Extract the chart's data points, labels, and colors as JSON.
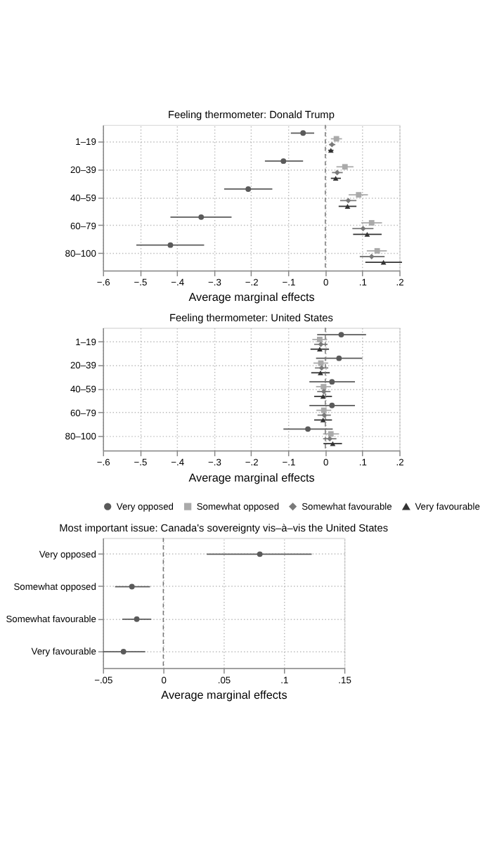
{
  "chart_data": [
    {
      "type": "scatter",
      "orientation": "horizontal",
      "title": "Feeling thermometer: Donald Trump",
      "xlabel": "Average marginal effects",
      "categories": [
        "1–19",
        "20–39",
        "40–59",
        "60–79",
        "80–100"
      ],
      "series": [
        {
          "color": "#5a5a5a",
          "marker": "circle",
          "values": [
            -0.06,
            -0.113,
            -0.208,
            -0.335,
            -0.418
          ],
          "errors": [
            [
              -0.093,
              -0.03
            ],
            [
              -0.163,
              -0.06
            ],
            [
              -0.273,
              -0.143
            ],
            [
              -0.418,
              -0.253
            ],
            [
              -0.51,
              -0.327
            ]
          ]
        },
        {
          "color": "#aaaaaa",
          "marker": "square",
          "values": [
            0.03,
            0.053,
            0.09,
            0.125,
            0.14
          ],
          "errors": [
            [
              0.015,
              0.045
            ],
            [
              0.03,
              0.076
            ],
            [
              0.063,
              0.115
            ],
            [
              0.097,
              0.153
            ],
            [
              0.112,
              0.166
            ]
          ]
        },
        {
          "color": "#7a7a7a",
          "marker": "diamond",
          "values": [
            0.018,
            0.032,
            0.062,
            0.102,
            0.125
          ],
          "errors": [
            [
              0.01,
              0.027
            ],
            [
              0.018,
              0.047
            ],
            [
              0.04,
              0.084
            ],
            [
              0.073,
              0.13
            ],
            [
              0.093,
              0.16
            ]
          ]
        },
        {
          "color": "#333333",
          "marker": "triangle",
          "values": [
            0.015,
            0.028,
            0.06,
            0.113,
            0.157
          ],
          "errors": [
            [
              0.008,
              0.022
            ],
            [
              0.015,
              0.042
            ],
            [
              0.036,
              0.084
            ],
            [
              0.075,
              0.152
            ],
            [
              0.108,
              0.207
            ]
          ]
        }
      ],
      "xlim": [
        -0.6,
        0.2
      ],
      "xticks": [
        {
          "value": -0.6,
          "label": "−.6"
        },
        {
          "value": -0.5,
          "label": "−.5"
        },
        {
          "value": -0.4,
          "label": "−.4"
        },
        {
          "value": -0.3,
          "label": "−.3"
        },
        {
          "value": -0.2,
          "label": "−.2"
        },
        {
          "value": -0.1,
          "label": "−.1"
        },
        0,
        {
          "value": 0.1,
          "label": ".1"
        },
        {
          "value": 0.2,
          "label": ".2"
        }
      ],
      "ref_lines": [
        {
          "axis": "x",
          "value": 0,
          "line_style": "dashed"
        }
      ],
      "grid": true,
      "legend": false
    },
    {
      "type": "scatter",
      "orientation": "horizontal",
      "title": "Feeling thermometer: United States",
      "xlabel": "Average marginal effects",
      "categories": [
        "1–19",
        "20–39",
        "40–59",
        "60–79",
        "80–100"
      ],
      "series": [
        {
          "name": "Very opposed",
          "color": "#5a5a5a",
          "marker": "circle",
          "values": [
            0.043,
            0.037,
            0.018,
            0.018,
            -0.047
          ],
          "errors": [
            [
              -0.022,
              0.11
            ],
            [
              -0.025,
              0.1
            ],
            [
              -0.043,
              0.08
            ],
            [
              -0.043,
              0.08
            ],
            [
              -0.113,
              0.02
            ]
          ]
        },
        {
          "name": "Somewhat opposed",
          "color": "#aaaaaa",
          "marker": "square",
          "values": [
            -0.015,
            -0.012,
            -0.005,
            -0.004,
            0.015
          ],
          "errors": [
            [
              -0.035,
              0.005
            ],
            [
              -0.032,
              0.008
            ],
            [
              -0.025,
              0.015
            ],
            [
              -0.024,
              0.016
            ],
            [
              -0.006,
              0.037
            ]
          ]
        },
        {
          "name": "Somewhat favourable",
          "color": "#7a7a7a",
          "marker": "diamond",
          "values": [
            -0.012,
            -0.01,
            -0.004,
            -0.003,
            0.012
          ],
          "errors": [
            [
              -0.03,
              0.006
            ],
            [
              -0.028,
              0.008
            ],
            [
              -0.022,
              0.014
            ],
            [
              -0.021,
              0.015
            ],
            [
              -0.006,
              0.03
            ]
          ]
        },
        {
          "name": "Very favourable",
          "color": "#333333",
          "marker": "triangle",
          "values": [
            -0.015,
            -0.013,
            -0.006,
            -0.006,
            0.02
          ],
          "errors": [
            [
              -0.04,
              0.01
            ],
            [
              -0.038,
              0.012
            ],
            [
              -0.03,
              0.018
            ],
            [
              -0.03,
              0.018
            ],
            [
              -0.005,
              0.045
            ]
          ]
        }
      ],
      "xlim": [
        -0.6,
        0.2
      ],
      "xticks": [
        {
          "value": -0.6,
          "label": "−.6"
        },
        {
          "value": -0.5,
          "label": "−.5"
        },
        {
          "value": -0.4,
          "label": "−.4"
        },
        {
          "value": -0.3,
          "label": "−.3"
        },
        {
          "value": -0.2,
          "label": "−.2"
        },
        {
          "value": -0.1,
          "label": "−.1"
        },
        0,
        {
          "value": 0.1,
          "label": ".1"
        },
        {
          "value": 0.2,
          "label": ".2"
        }
      ],
      "ref_lines": [
        {
          "axis": "x",
          "value": 0,
          "line_style": "dashed"
        }
      ],
      "grid": true,
      "legend": "bottom"
    },
    {
      "type": "scatter",
      "orientation": "horizontal",
      "title": "Most important issue: Canada's sovereignty vis–à–vis the United States",
      "xlabel": "Average marginal effects",
      "categories": [
        "Very opposed",
        "Somewhat opposed",
        "Somewhat favourable",
        "Very favourable"
      ],
      "color": "#5a5a5a",
      "marker": "circle",
      "values": [
        0.08,
        -0.026,
        -0.022,
        -0.033
      ],
      "errors": [
        [
          0.036,
          0.123
        ],
        [
          -0.04,
          -0.011
        ],
        [
          -0.034,
          -0.01
        ],
        [
          -0.05,
          -0.015
        ]
      ],
      "xlim": [
        -0.05,
        0.15
      ],
      "xticks": [
        {
          "value": -0.05,
          "label": "−.05"
        },
        {
          "value": 0,
          "label": "0"
        },
        {
          "value": 0.05,
          "label": ".05"
        },
        {
          "value": 0.1,
          "label": ".1"
        },
        {
          "value": 0.15,
          "label": ".15"
        }
      ],
      "ref_lines": [
        {
          "axis": "x",
          "value": 0,
          "line_style": "dashed"
        }
      ],
      "grid": true,
      "legend": false
    }
  ]
}
